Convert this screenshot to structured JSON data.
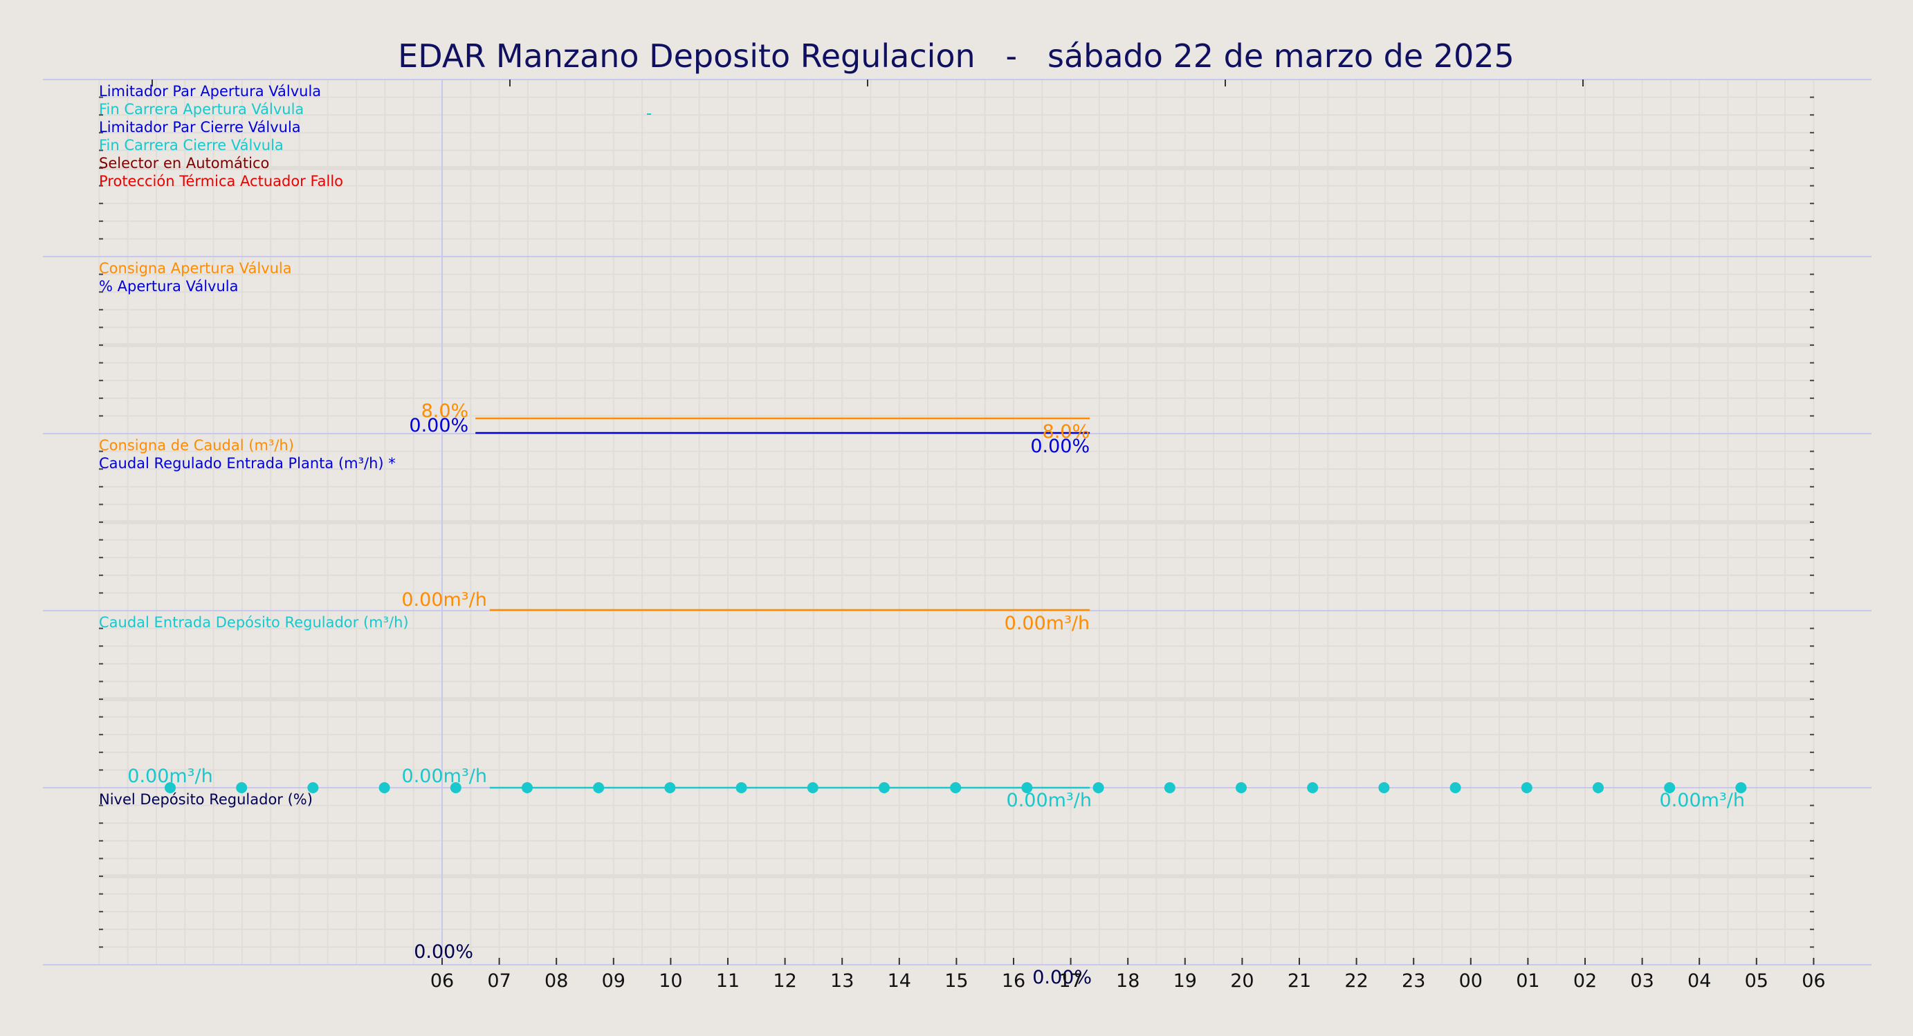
{
  "title": "EDAR Manzano Deposito Regulacion   -   sábado 22 de marzo de 2025",
  "colors": {
    "background": "#eae6e1",
    "title": "#101060",
    "frame": "#c8c8ee",
    "grid": "#e0dcd8",
    "orange": "#ff8c00",
    "blue": "#0000dd",
    "cyan": "#18c8cc",
    "darkred": "#800000",
    "red": "#ee0000",
    "navy": "#000050"
  },
  "x_ticks": [
    "06",
    "07",
    "08",
    "09",
    "10",
    "11",
    "12",
    "13",
    "14",
    "15",
    "16",
    "17",
    "18",
    "19",
    "20",
    "21",
    "22",
    "23",
    "00",
    "01",
    "02",
    "03",
    "04",
    "05",
    "06"
  ],
  "chart_data": [
    {
      "type": "line",
      "panel": "digital",
      "legend": [
        {
          "label": "Limitador Par Apertura Válvula",
          "color": "#0000dd"
        },
        {
          "label": "Fin Carrera Apertura Válvula",
          "color": "#18c8cc"
        },
        {
          "label": "Limitador Par Cierre Válvula",
          "color": "#0000dd"
        },
        {
          "label": "Fin Carrera Cierre Válvula",
          "color": "#18c8cc"
        },
        {
          "label": "Selector en Automático",
          "color": "#800000"
        },
        {
          "label": "Protección Térmica Actuador Fallo",
          "color": "#ee0000"
        }
      ],
      "series": []
    },
    {
      "type": "line",
      "panel": "valve",
      "legend": [
        {
          "label": "Consigna Apertura Válvula",
          "color": "#ff8c00"
        },
        {
          "label": "% Apertura Válvula",
          "color": "#0000dd"
        }
      ],
      "series": [
        {
          "name": "Consigna Apertura Válvula",
          "color": "#ff8c00",
          "x_start": "06:35",
          "x_end": "17:20",
          "value": 8.0,
          "start_label": "8.0%",
          "end_label": "8.0%"
        },
        {
          "name": "% Apertura Válvula",
          "color": "#0000dd",
          "x_start": "06:35",
          "x_end": "17:20",
          "value": 0.0,
          "start_label": "0.00%",
          "end_label": "0.00%"
        }
      ],
      "ylim": [
        0,
        100
      ]
    },
    {
      "type": "line",
      "panel": "flow_setpoint",
      "legend": [
        {
          "label": "Consigna de Caudal (m³/h)",
          "color": "#ff8c00"
        },
        {
          "label": "Caudal Regulado Entrada Planta (m³/h) *",
          "color": "#0000dd"
        }
      ],
      "series": [
        {
          "name": "Consigna de Caudal (m³/h)",
          "color": "#ff8c00",
          "x_start": "06:50",
          "x_end": "17:20",
          "value": 0.0,
          "start_label": "0.00m³/h",
          "end_label": "0.00m³/h"
        }
      ]
    },
    {
      "type": "scatter",
      "panel": "deposit_inflow",
      "legend": [
        {
          "label": "Caudal Entrada Depósito Regulador (m³/h)",
          "color": "#18c8cc"
        }
      ],
      "series": [
        {
          "name": "Caudal Entrada Depósito Regulador (m³/h)",
          "color": "#18c8cc",
          "x": [
            "01:15",
            "02:30",
            "03:45",
            "05:00",
            "06:15",
            "07:30",
            "08:45",
            "10:00",
            "11:15",
            "12:30",
            "13:45",
            "15:00",
            "16:15",
            "17:30",
            "18:45",
            "20:00",
            "21:15",
            "22:30",
            "23:45",
            "01:00",
            "02:15",
            "03:30",
            "04:45"
          ],
          "y": [
            0,
            0,
            0,
            0,
            0,
            0,
            0,
            0,
            0,
            0,
            0,
            0,
            0,
            0,
            0,
            0,
            0,
            0,
            0,
            0,
            0,
            0,
            0
          ],
          "line": {
            "x_start": "06:50",
            "x_end": "17:20",
            "value": 0.0
          },
          "labels": [
            {
              "text": "0.00m³/h",
              "at": "01:15",
              "pos": "above"
            },
            {
              "text": "0.00m³/h",
              "at": "06:00",
              "pos": "above"
            },
            {
              "text": "0.00m³/h",
              "at": "17:20",
              "pos": "below"
            },
            {
              "text": "0.00m³/h",
              "at": "04:45",
              "pos": "below"
            }
          ]
        }
      ]
    },
    {
      "type": "line",
      "panel": "deposit_level",
      "legend": [
        {
          "label": "Nivel Depósito Regulador (%)",
          "color": "#000050"
        }
      ],
      "series": [
        {
          "name": "Nivel Depósito Regulador (%)",
          "color": "#000050",
          "value": 0.0,
          "start_label": "0.00%",
          "end_label": "0.00%"
        }
      ]
    }
  ]
}
